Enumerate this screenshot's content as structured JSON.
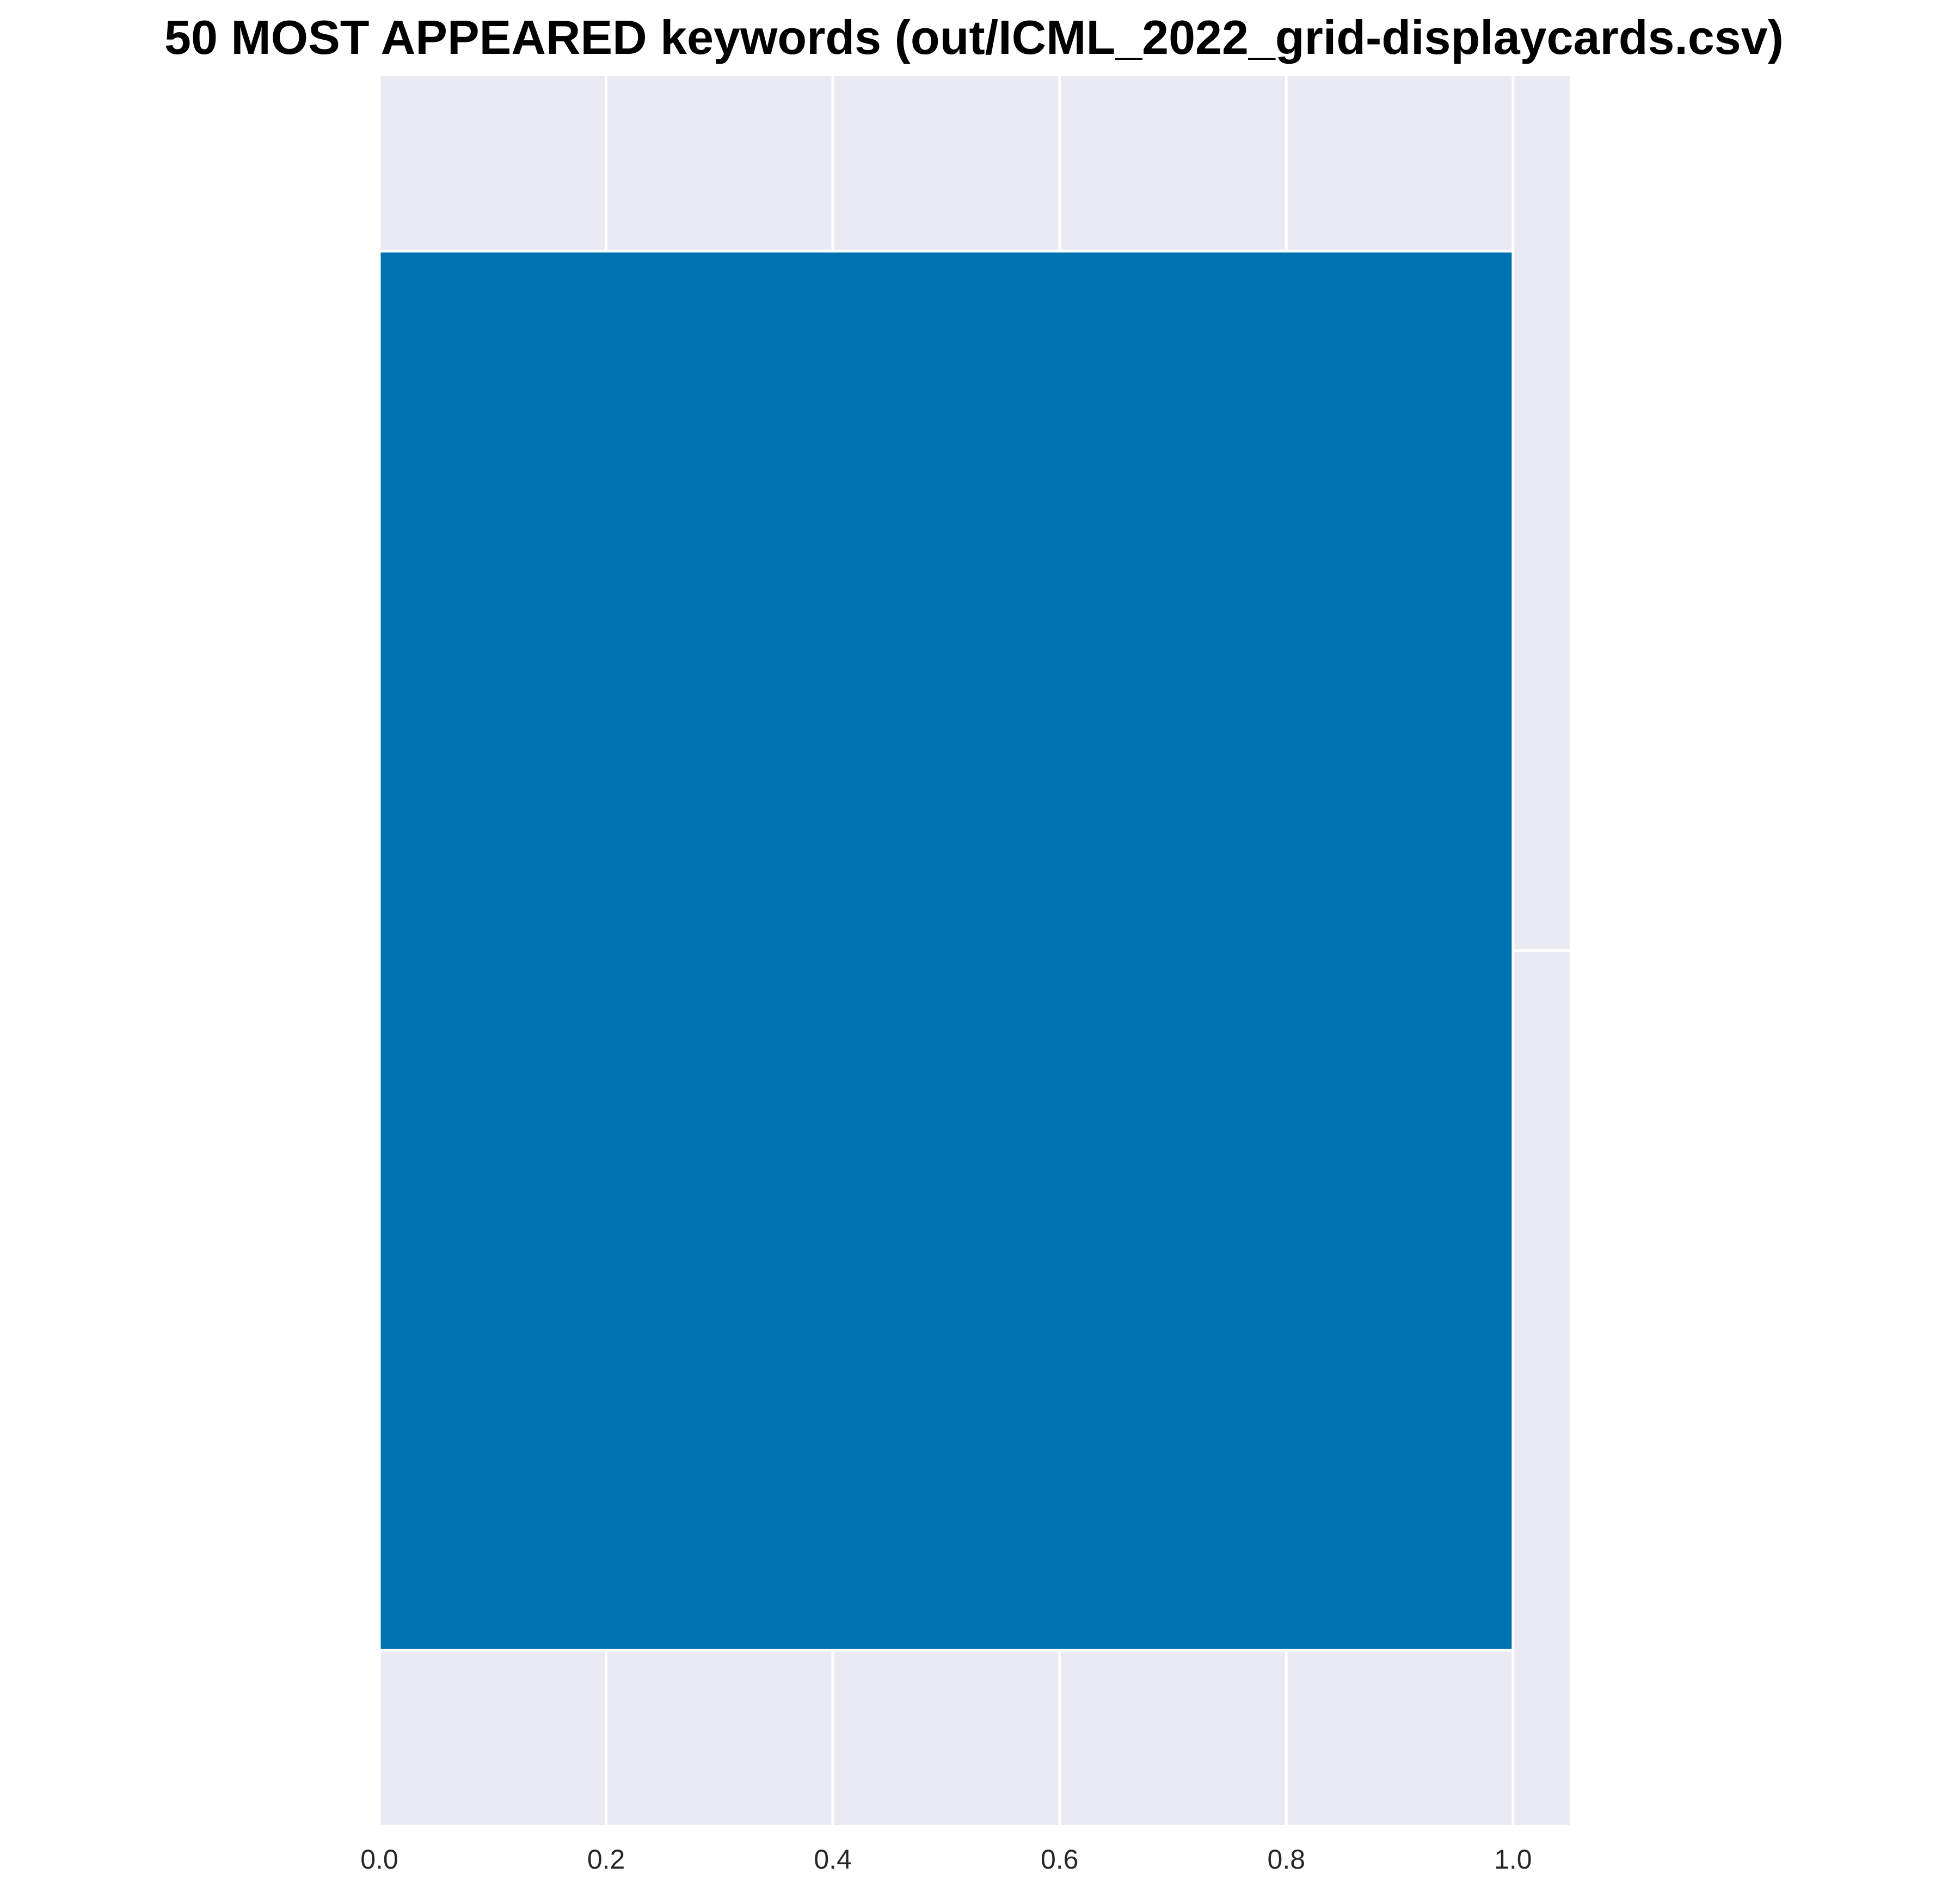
{
  "chart_data": {
    "type": "bar",
    "orientation": "horizontal",
    "title": "50 MOST APPEARED keywords (out/ICML_2022_grid-displaycards.csv)",
    "xlabel": "",
    "ylabel": "",
    "categories": [
      ""
    ],
    "values": [
      1.0
    ],
    "xlim": [
      0,
      1.05
    ],
    "ylim": [
      -0.5,
      0.5
    ],
    "xticks": [
      0.0,
      0.2,
      0.4,
      0.6,
      0.8,
      1.0
    ],
    "xtick_labels": [
      "0.0",
      "0.2",
      "0.4",
      "0.6",
      "0.8",
      "1.0"
    ],
    "grid": true,
    "legend": "none",
    "colors": {
      "bar": "#0072B2",
      "plot_background": "#EAEAF2",
      "grid": "#FFFFFF"
    }
  }
}
